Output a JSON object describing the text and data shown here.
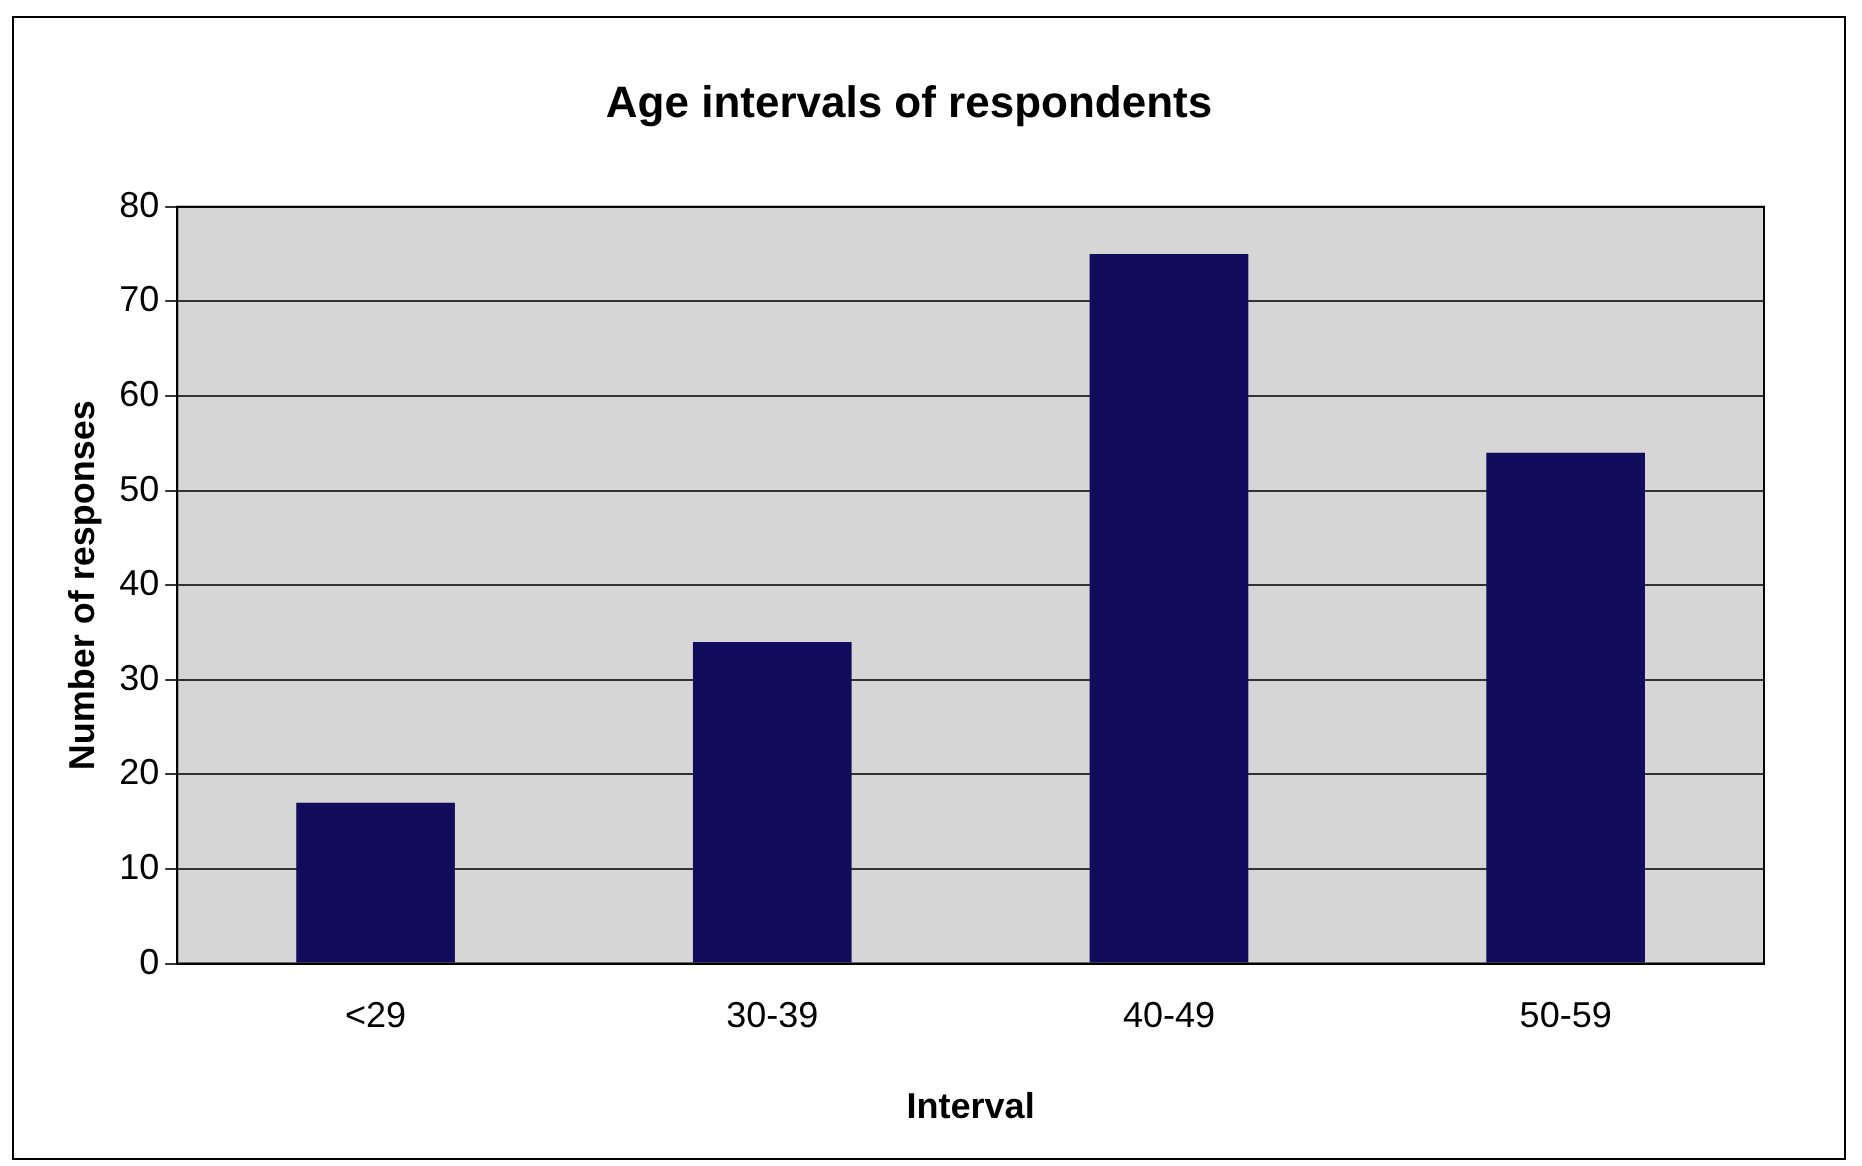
{
  "chart_data": {
    "type": "bar",
    "title": "Age intervals of respondents",
    "xlabel": "Interval",
    "ylabel": "Number of responses",
    "categories": [
      "<29",
      "30-39",
      "40-49",
      "50-59"
    ],
    "values": [
      17,
      34,
      75,
      54
    ],
    "color": "#120c5c",
    "ylim": [
      0,
      80
    ],
    "yticks": [
      0,
      10,
      20,
      30,
      40,
      50,
      60,
      70,
      80
    ],
    "grid": "y",
    "legend": false
  }
}
